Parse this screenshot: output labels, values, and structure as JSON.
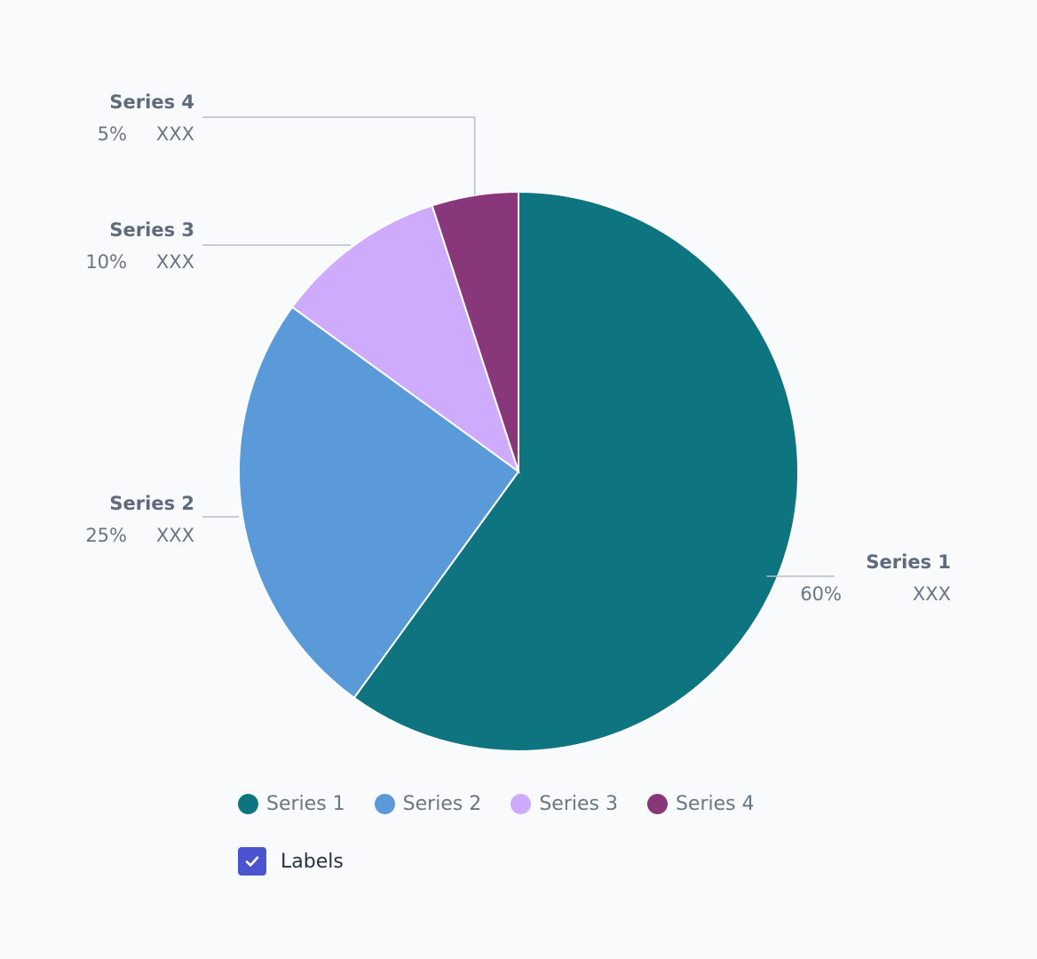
{
  "chart_data": {
    "type": "pie",
    "categories": [
      "Series 1",
      "Series 2",
      "Series 3",
      "Series 4"
    ],
    "values": [
      60,
      25,
      10,
      5
    ],
    "value_labels": [
      "60%",
      "25%",
      "10%",
      "5%"
    ],
    "secondary_labels": [
      "XXX",
      "XXX",
      "XXX",
      "XXX"
    ],
    "colors": [
      "#0e7580",
      "#5a9ad8",
      "#cfabfd",
      "#88387a"
    ],
    "start_angle_deg": 0,
    "direction": "clockwise",
    "title": "",
    "legend_position": "bottom-left"
  },
  "legend": {
    "items": [
      {
        "label": "Series 1",
        "color": "#0e7580"
      },
      {
        "label": "Series 2",
        "color": "#5a9ad8"
      },
      {
        "label": "Series 3",
        "color": "#cfabfd"
      },
      {
        "label": "Series 4",
        "color": "#88387a"
      }
    ]
  },
  "controls": {
    "labels_toggle": {
      "label": "Labels",
      "checked": true,
      "accent": "#4c53cf"
    }
  }
}
